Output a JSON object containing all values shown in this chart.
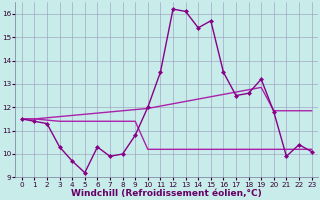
{
  "xlabel": "Windchill (Refroidissement éolien,°C)",
  "x": [
    0,
    1,
    2,
    3,
    4,
    5,
    6,
    7,
    8,
    9,
    10,
    11,
    12,
    13,
    14,
    15,
    16,
    17,
    18,
    19,
    20,
    21,
    22,
    23
  ],
  "y_main": [
    11.5,
    11.4,
    11.3,
    10.3,
    9.7,
    9.2,
    10.3,
    9.9,
    10.0,
    10.8,
    12.0,
    13.5,
    16.2,
    16.1,
    15.4,
    15.7,
    13.5,
    12.5,
    12.6,
    13.2,
    11.8,
    9.9,
    10.4,
    10.1
  ],
  "y_upper": [
    11.5,
    11.5,
    11.55,
    11.6,
    11.65,
    11.7,
    11.75,
    11.8,
    11.85,
    11.9,
    11.95,
    12.05,
    12.15,
    12.25,
    12.35,
    12.45,
    12.55,
    12.65,
    12.75,
    12.85,
    11.85,
    11.85,
    11.85,
    11.85
  ],
  "y_lower": [
    11.5,
    11.5,
    11.45,
    11.4,
    11.4,
    11.4,
    11.4,
    11.4,
    11.4,
    11.4,
    10.2,
    10.2,
    10.2,
    10.2,
    10.2,
    10.2,
    10.2,
    10.2,
    10.2,
    10.2,
    10.2,
    10.2,
    10.2,
    10.2
  ],
  "ylim": [
    9.0,
    16.5
  ],
  "xlim": [
    -0.5,
    23.5
  ],
  "yticks": [
    9,
    10,
    11,
    12,
    13,
    14,
    15,
    16
  ],
  "xticks": [
    0,
    1,
    2,
    3,
    4,
    5,
    6,
    7,
    8,
    9,
    10,
    11,
    12,
    13,
    14,
    15,
    16,
    17,
    18,
    19,
    20,
    21,
    22,
    23
  ],
  "bg_color": "#c8ecea",
  "grid_color": "#9999bb",
  "line_color_main": "#880088",
  "line_color_upper": "#aa22aa",
  "line_color_lower": "#aa22aa",
  "marker": "D",
  "markersize": 2.0,
  "linewidth_main": 1.0,
  "linewidth_other": 1.0,
  "tick_fontsize": 5.2,
  "label_fontsize": 6.5,
  "label_color": "#660066",
  "tick_color": "#330033"
}
